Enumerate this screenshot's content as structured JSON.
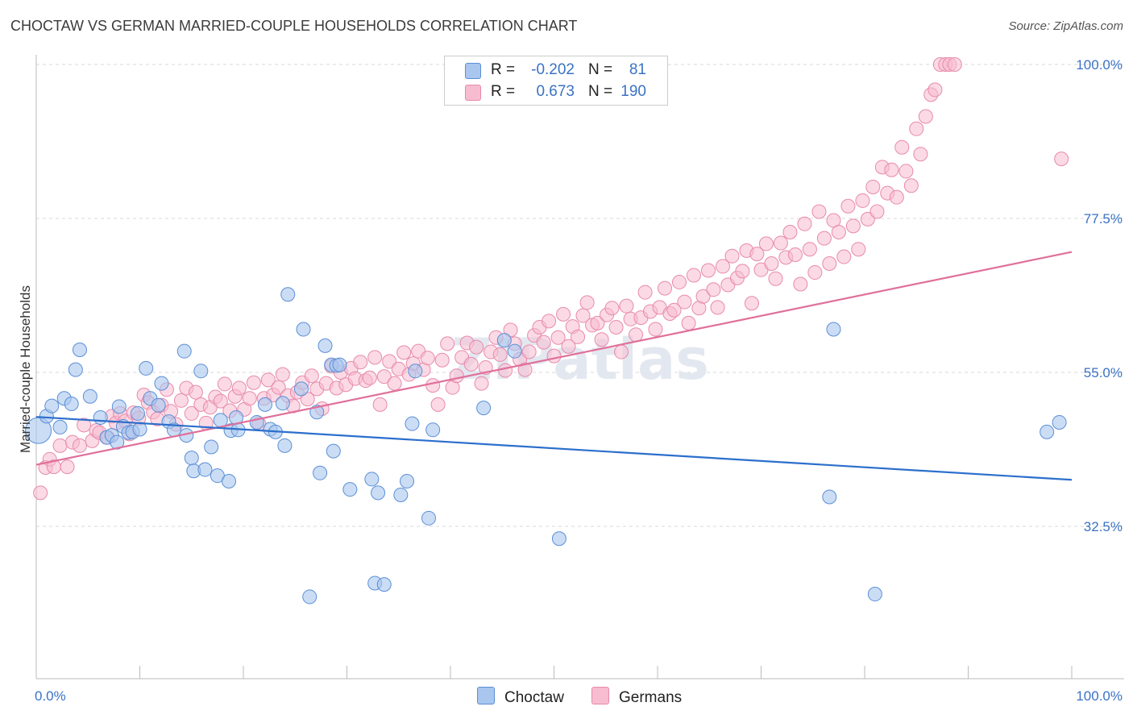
{
  "title": "CHOCTAW VS GERMAN MARRIED-COUPLE HOUSEHOLDS CORRELATION CHART",
  "source": "Source: ZipAtlas.com",
  "watermark": "ZIPatlas",
  "legend": {
    "rows": [
      {
        "r_label": "R =",
        "r_value": "-0.202",
        "n_label": "N =",
        "n_value": "81"
      },
      {
        "r_label": "R =",
        "r_value": "0.673",
        "n_label": "N =",
        "n_value": "190"
      }
    ]
  },
  "bottom_legend": {
    "choctaw": "Choctaw",
    "germans": "Germans"
  },
  "chart_data": {
    "type": "scatter",
    "ylabel": "Married-couple Households",
    "xlim": [
      0,
      100
    ],
    "ylim": [
      14,
      100
    ],
    "x_tick_labels": [
      "0.0%",
      "100.0%"
    ],
    "y_ticks": [
      32.5,
      55.0,
      77.5,
      100.0
    ],
    "y_tick_labels": [
      "32.5%",
      "55.0%",
      "77.5%",
      "100.0%"
    ],
    "grid": true,
    "legend_position": "top-center",
    "colors": {
      "choctaw_fill": "#a9c6ee",
      "choctaw_stroke": "#5b8fd6",
      "choctaw_line": "#2c6fcc",
      "germans_fill": "#f7bcd0",
      "germans_stroke": "#e88aab",
      "germans_line": "#e0709a"
    },
    "series": [
      {
        "name": "Choctaw",
        "trend": {
          "x": [
            0,
            100
          ],
          "y": [
            48.5,
            39.3
          ]
        },
        "points": [
          [
            0.2,
            46.5
          ],
          [
            1.0,
            48.6
          ],
          [
            1.5,
            50.1
          ],
          [
            2.3,
            47.0
          ],
          [
            2.7,
            51.2
          ],
          [
            3.4,
            50.4
          ],
          [
            3.8,
            55.4
          ],
          [
            4.2,
            58.3
          ],
          [
            5.2,
            51.5
          ],
          [
            6.2,
            48.4
          ],
          [
            6.8,
            45.5
          ],
          [
            7.3,
            45.8
          ],
          [
            7.8,
            44.8
          ],
          [
            8.0,
            50.0
          ],
          [
            8.4,
            47.1
          ],
          [
            8.9,
            46.2
          ],
          [
            9.3,
            46.3
          ],
          [
            9.8,
            49.0
          ],
          [
            10.0,
            46.7
          ],
          [
            10.6,
            55.6
          ],
          [
            11.0,
            51.2
          ],
          [
            11.8,
            50.2
          ],
          [
            12.1,
            53.4
          ],
          [
            12.8,
            47.8
          ],
          [
            13.3,
            46.6
          ],
          [
            14.3,
            58.1
          ],
          [
            14.5,
            45.8
          ],
          [
            15.0,
            42.5
          ],
          [
            15.2,
            40.6
          ],
          [
            15.9,
            55.2
          ],
          [
            16.3,
            40.8
          ],
          [
            16.9,
            44.1
          ],
          [
            17.5,
            39.9
          ],
          [
            17.8,
            48.0
          ],
          [
            18.6,
            39.1
          ],
          [
            18.8,
            46.5
          ],
          [
            19.3,
            48.4
          ],
          [
            19.5,
            46.6
          ],
          [
            21.3,
            47.7
          ],
          [
            22.1,
            50.3
          ],
          [
            22.6,
            46.7
          ],
          [
            23.1,
            46.3
          ],
          [
            23.8,
            50.5
          ],
          [
            24.0,
            44.3
          ],
          [
            24.3,
            66.4
          ],
          [
            25.6,
            52.6
          ],
          [
            25.8,
            61.3
          ],
          [
            26.4,
            22.2
          ],
          [
            27.1,
            49.2
          ],
          [
            27.4,
            40.3
          ],
          [
            27.9,
            58.9
          ],
          [
            28.5,
            56.1
          ],
          [
            28.7,
            43.5
          ],
          [
            29.0,
            56.0
          ],
          [
            29.3,
            56.1
          ],
          [
            30.3,
            37.9
          ],
          [
            32.4,
            39.4
          ],
          [
            32.7,
            24.2
          ],
          [
            33.0,
            37.4
          ],
          [
            33.6,
            24.0
          ],
          [
            35.2,
            37.1
          ],
          [
            35.8,
            39.1
          ],
          [
            36.3,
            47.5
          ],
          [
            36.6,
            55.2
          ],
          [
            37.9,
            33.7
          ],
          [
            38.3,
            46.6
          ],
          [
            43.2,
            49.8
          ],
          [
            45.2,
            59.7
          ],
          [
            46.2,
            58.1
          ],
          [
            50.5,
            30.7
          ],
          [
            76.6,
            36.8
          ],
          [
            77.0,
            61.3
          ],
          [
            81.0,
            22.6
          ],
          [
            97.6,
            46.3
          ],
          [
            98.8,
            47.7
          ]
        ]
      },
      {
        "name": "Germans",
        "trend": {
          "x": [
            0,
            100
          ],
          "y": [
            41.5,
            72.6
          ]
        },
        "points": [
          [
            0.4,
            37.4
          ],
          [
            0.9,
            41.1
          ],
          [
            1.3,
            42.3
          ],
          [
            1.7,
            41.2
          ],
          [
            2.3,
            44.3
          ],
          [
            3.0,
            41.2
          ],
          [
            3.5,
            44.8
          ],
          [
            4.2,
            44.3
          ],
          [
            4.6,
            47.3
          ],
          [
            5.4,
            45.0
          ],
          [
            5.8,
            46.5
          ],
          [
            6.1,
            46.2
          ],
          [
            6.9,
            45.5
          ],
          [
            7.3,
            48.6
          ],
          [
            7.7,
            47.6
          ],
          [
            8.1,
            49.0
          ],
          [
            8.6,
            47.9
          ],
          [
            9.0,
            46.0
          ],
          [
            9.4,
            49.1
          ],
          [
            9.9,
            48.3
          ],
          [
            10.4,
            51.7
          ],
          [
            10.8,
            50.6
          ],
          [
            11.3,
            49.2
          ],
          [
            11.7,
            48.2
          ],
          [
            12.1,
            50.2
          ],
          [
            12.6,
            52.5
          ],
          [
            13.0,
            49.3
          ],
          [
            13.5,
            47.4
          ],
          [
            14.0,
            50.9
          ],
          [
            14.5,
            52.7
          ],
          [
            15.0,
            49.0
          ],
          [
            15.4,
            52.1
          ],
          [
            15.9,
            50.3
          ],
          [
            16.4,
            47.6
          ],
          [
            16.8,
            49.9
          ],
          [
            17.3,
            51.4
          ],
          [
            17.8,
            50.8
          ],
          [
            18.2,
            53.3
          ],
          [
            18.7,
            49.4
          ],
          [
            19.2,
            51.5
          ],
          [
            19.6,
            52.7
          ],
          [
            20.1,
            49.6
          ],
          [
            20.6,
            51.2
          ],
          [
            21.0,
            53.5
          ],
          [
            21.5,
            47.5
          ],
          [
            22.0,
            51.2
          ],
          [
            22.4,
            53.9
          ],
          [
            22.9,
            51.7
          ],
          [
            23.4,
            52.8
          ],
          [
            23.8,
            54.7
          ],
          [
            24.3,
            51.6
          ],
          [
            24.8,
            50.1
          ],
          [
            25.2,
            52.1
          ],
          [
            25.7,
            53.5
          ],
          [
            26.2,
            51.1
          ],
          [
            26.6,
            54.5
          ],
          [
            27.1,
            52.6
          ],
          [
            27.6,
            49.7
          ],
          [
            28.0,
            53.4
          ],
          [
            28.5,
            55.9
          ],
          [
            29.0,
            52.7
          ],
          [
            29.4,
            55.0
          ],
          [
            29.9,
            53.2
          ],
          [
            30.4,
            55.6
          ],
          [
            30.8,
            54.1
          ],
          [
            31.3,
            56.5
          ],
          [
            31.8,
            53.8
          ],
          [
            32.2,
            54.2
          ],
          [
            32.7,
            57.2
          ],
          [
            33.2,
            50.3
          ],
          [
            33.6,
            54.4
          ],
          [
            34.1,
            56.6
          ],
          [
            34.6,
            53.4
          ],
          [
            35.0,
            55.5
          ],
          [
            35.5,
            57.9
          ],
          [
            36.0,
            54.7
          ],
          [
            36.4,
            56.3
          ],
          [
            36.9,
            58.1
          ],
          [
            37.4,
            55.4
          ],
          [
            37.8,
            57.1
          ],
          [
            38.3,
            53.1
          ],
          [
            38.8,
            50.3
          ],
          [
            39.2,
            56.8
          ],
          [
            39.7,
            59.2
          ],
          [
            40.2,
            52.8
          ],
          [
            40.6,
            54.5
          ],
          [
            41.1,
            57.2
          ],
          [
            41.6,
            59.3
          ],
          [
            42.0,
            56.2
          ],
          [
            42.5,
            58.7
          ],
          [
            43.0,
            53.4
          ],
          [
            43.4,
            55.7
          ],
          [
            43.9,
            58.0
          ],
          [
            44.4,
            60.1
          ],
          [
            44.8,
            57.6
          ],
          [
            45.3,
            55.3
          ],
          [
            45.8,
            61.2
          ],
          [
            46.2,
            59.2
          ],
          [
            46.7,
            56.9
          ],
          [
            47.2,
            55.4
          ],
          [
            47.6,
            58.0
          ],
          [
            48.1,
            60.4
          ],
          [
            48.6,
            61.6
          ],
          [
            49.0,
            59.4
          ],
          [
            49.5,
            62.5
          ],
          [
            50.0,
            57.4
          ],
          [
            50.4,
            60.1
          ],
          [
            50.9,
            63.5
          ],
          [
            51.4,
            58.8
          ],
          [
            51.8,
            61.7
          ],
          [
            52.3,
            60.2
          ],
          [
            52.8,
            63.3
          ],
          [
            53.2,
            65.2
          ],
          [
            53.7,
            61.9
          ],
          [
            54.2,
            62.2
          ],
          [
            54.6,
            59.8
          ],
          [
            55.1,
            63.4
          ],
          [
            55.6,
            64.4
          ],
          [
            56.0,
            61.6
          ],
          [
            56.5,
            58.0
          ],
          [
            57.0,
            64.7
          ],
          [
            57.4,
            62.8
          ],
          [
            57.9,
            60.5
          ],
          [
            58.4,
            63.0
          ],
          [
            58.8,
            66.7
          ],
          [
            59.3,
            63.9
          ],
          [
            59.8,
            61.3
          ],
          [
            60.2,
            64.5
          ],
          [
            60.7,
            67.3
          ],
          [
            61.2,
            63.6
          ],
          [
            61.6,
            64.1
          ],
          [
            62.1,
            68.2
          ],
          [
            62.6,
            65.3
          ],
          [
            63.0,
            62.2
          ],
          [
            63.5,
            69.2
          ],
          [
            64.0,
            64.4
          ],
          [
            64.4,
            66.1
          ],
          [
            64.9,
            69.9
          ],
          [
            65.4,
            67.1
          ],
          [
            65.8,
            64.5
          ],
          [
            66.3,
            70.5
          ],
          [
            66.8,
            67.8
          ],
          [
            67.2,
            72.0
          ],
          [
            67.7,
            68.8
          ],
          [
            68.2,
            69.8
          ],
          [
            68.6,
            72.8
          ],
          [
            69.1,
            65.1
          ],
          [
            69.6,
            72.3
          ],
          [
            70.0,
            70.0
          ],
          [
            70.5,
            73.8
          ],
          [
            71.0,
            70.9
          ],
          [
            71.4,
            68.7
          ],
          [
            71.9,
            73.9
          ],
          [
            72.4,
            71.8
          ],
          [
            72.8,
            75.5
          ],
          [
            73.3,
            72.2
          ],
          [
            73.8,
            67.9
          ],
          [
            74.2,
            76.7
          ],
          [
            74.7,
            73.0
          ],
          [
            75.2,
            69.6
          ],
          [
            75.6,
            78.5
          ],
          [
            76.1,
            74.6
          ],
          [
            76.6,
            70.9
          ],
          [
            77.0,
            77.2
          ],
          [
            77.5,
            75.5
          ],
          [
            78.0,
            71.9
          ],
          [
            78.4,
            79.3
          ],
          [
            78.9,
            76.4
          ],
          [
            79.4,
            73.0
          ],
          [
            79.8,
            80.1
          ],
          [
            80.3,
            77.4
          ],
          [
            80.8,
            82.1
          ],
          [
            81.2,
            78.5
          ],
          [
            81.7,
            85.0
          ],
          [
            82.2,
            81.2
          ],
          [
            82.6,
            84.6
          ],
          [
            83.1,
            80.6
          ],
          [
            83.6,
            87.9
          ],
          [
            84.0,
            84.4
          ],
          [
            84.5,
            82.3
          ],
          [
            85.0,
            90.6
          ],
          [
            85.4,
            86.9
          ],
          [
            85.9,
            92.4
          ],
          [
            86.4,
            95.6
          ],
          [
            86.8,
            96.3
          ],
          [
            87.3,
            100.0
          ],
          [
            87.8,
            100.0
          ],
          [
            88.2,
            100.0
          ],
          [
            88.7,
            100.0
          ],
          [
            99.0,
            86.2
          ]
        ]
      }
    ]
  }
}
